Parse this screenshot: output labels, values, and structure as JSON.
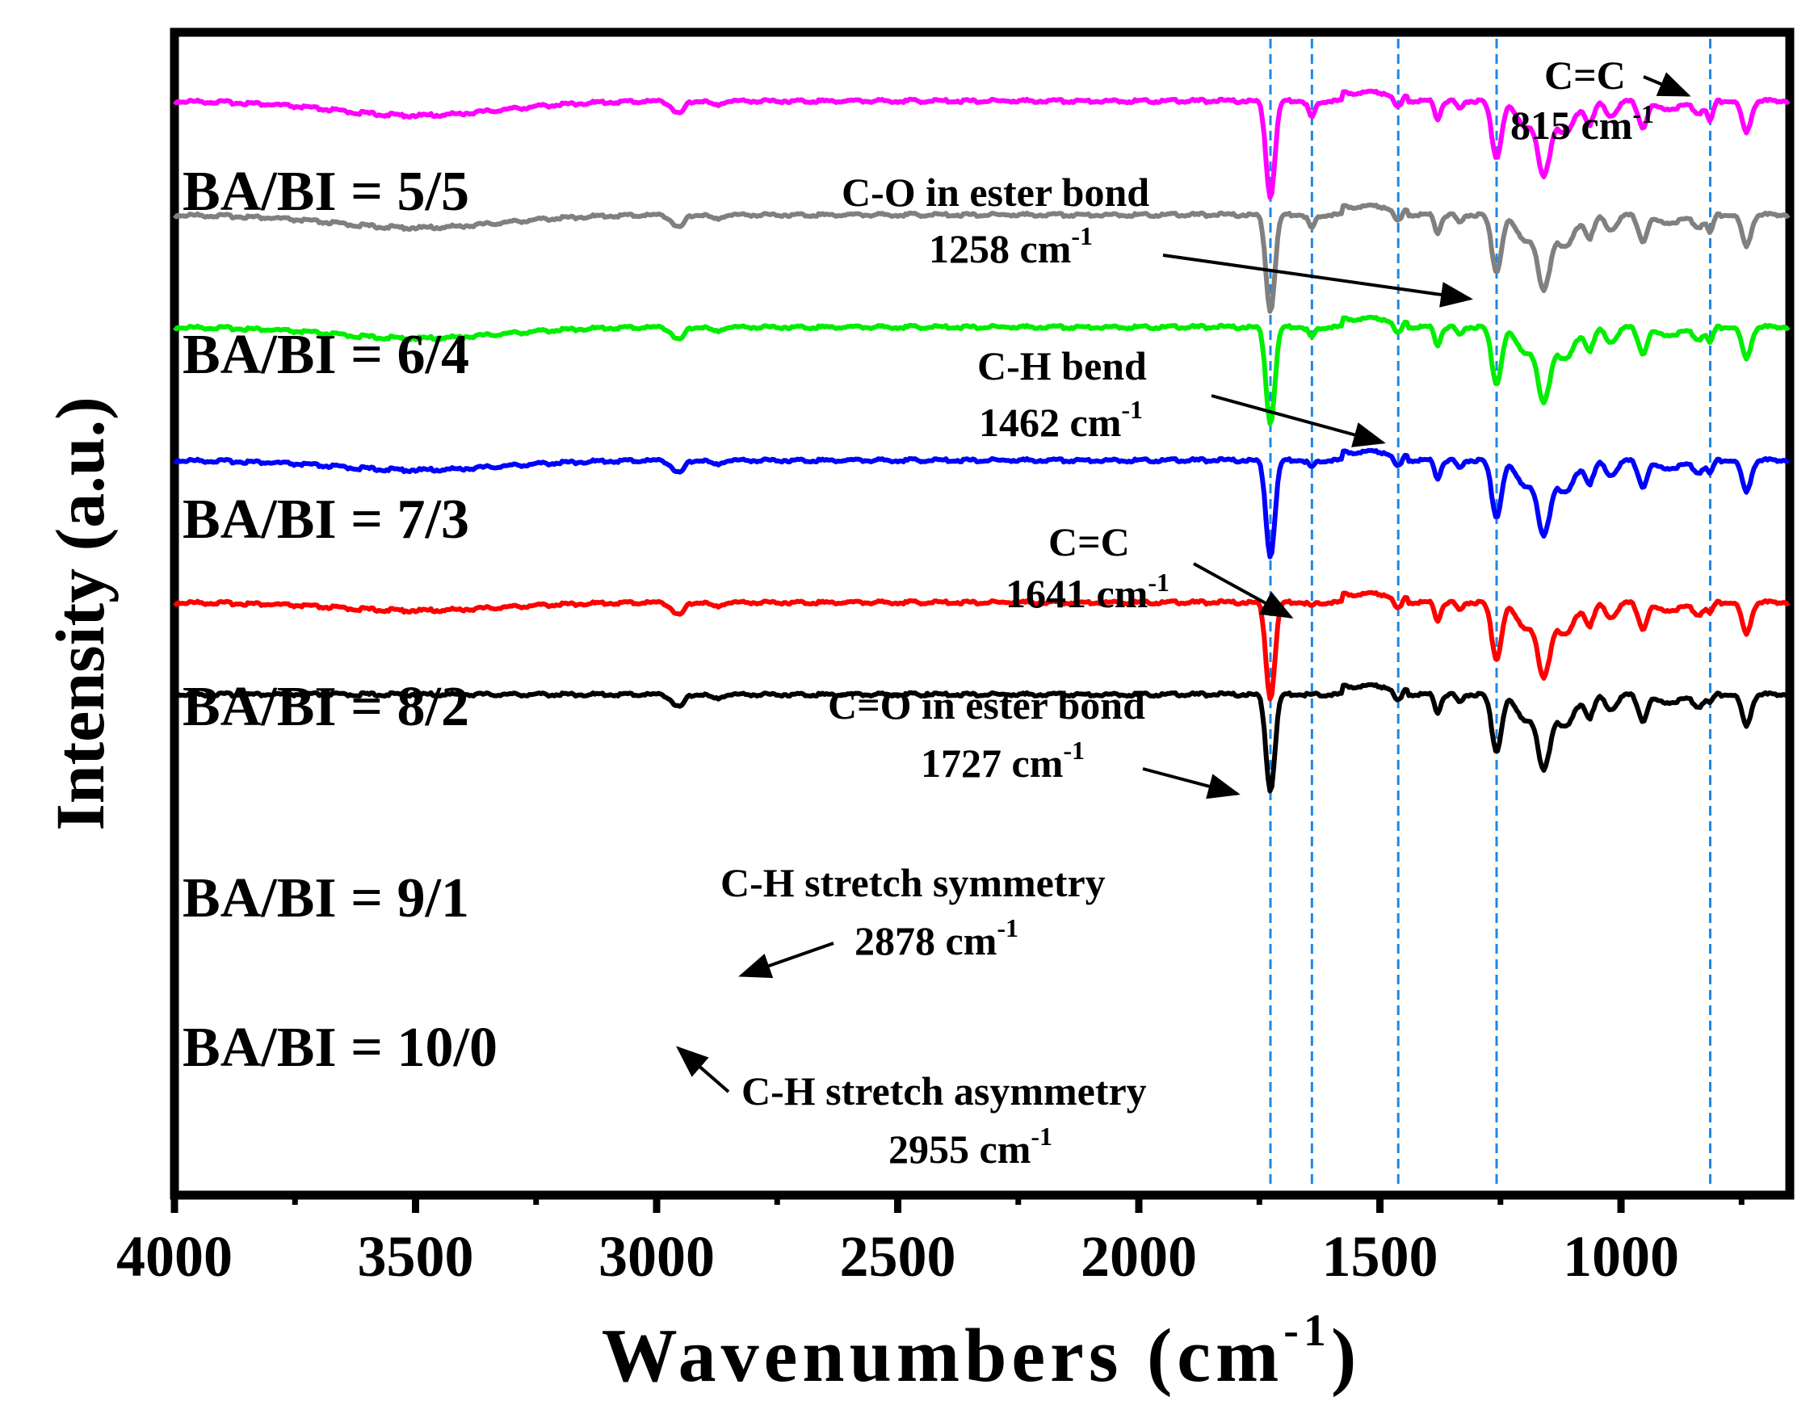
{
  "chart_data": {
    "type": "line",
    "title": "",
    "xlabel": "Wavenumbers (cm",
    "xlabel_sup": "-1",
    "xlabel_end": ")",
    "ylabel": "Intensity (a.u.)",
    "xlim": [
      4000,
      650
    ],
    "x_ticks": [
      4000,
      3500,
      3000,
      2500,
      2000,
      1500,
      1000
    ],
    "x_tick_labels": [
      "4000",
      "3500",
      "3000",
      "2500",
      "2000",
      "1500",
      "1000"
    ],
    "reference_lines": [
      1727,
      1641,
      1462,
      1258,
      815
    ],
    "series": [
      {
        "name": "BA/BI = 5/5",
        "label": "BA/BI = 5/5",
        "color": "#ff00ff",
        "offset": 5
      },
      {
        "name": "BA/BI = 6/4",
        "label": "BA/BI = 6/4",
        "color": "#808080",
        "offset": 4
      },
      {
        "name": "BA/BI = 7/3",
        "label": "BA/BI = 7/3",
        "color": "#00ee00",
        "offset": 3
      },
      {
        "name": "BA/BI = 8/2",
        "label": "BA/BI = 8/2",
        "color": "#0000ff",
        "offset": 2
      },
      {
        "name": "BA/BI = 9/1",
        "label": "BA/BI = 9/1",
        "color": "#ff0000",
        "offset": 1
      },
      {
        "name": "BA/BI = 10/0",
        "label": "BA/BI = 10/0",
        "color": "#000000",
        "offset": 0
      }
    ],
    "annotations": [
      {
        "id": "c815",
        "line1": "C=C",
        "line2": "815 cm",
        "sup": "-1"
      },
      {
        "id": "co1258",
        "line1": "C-O in ester bond",
        "line2": "1258 cm",
        "sup": "-1"
      },
      {
        "id": "ch1462",
        "line1": "C-H  bend",
        "line2": "1462 cm",
        "sup": "-1"
      },
      {
        "id": "cc1641",
        "line1": "C=C",
        "line2": "1641 cm",
        "sup": "-1"
      },
      {
        "id": "co1727",
        "line1": "C=O in ester bond",
        "line2": "1727 cm",
        "sup": "-1"
      },
      {
        "id": "ch2878",
        "line1": "C-H  stretch symmetry",
        "line2": "2878 cm",
        "sup": "-1"
      },
      {
        "id": "ch2955",
        "line1": "C-H  stretch asymmetry",
        "line2": "2955 cm",
        "sup": "-1"
      }
    ]
  }
}
